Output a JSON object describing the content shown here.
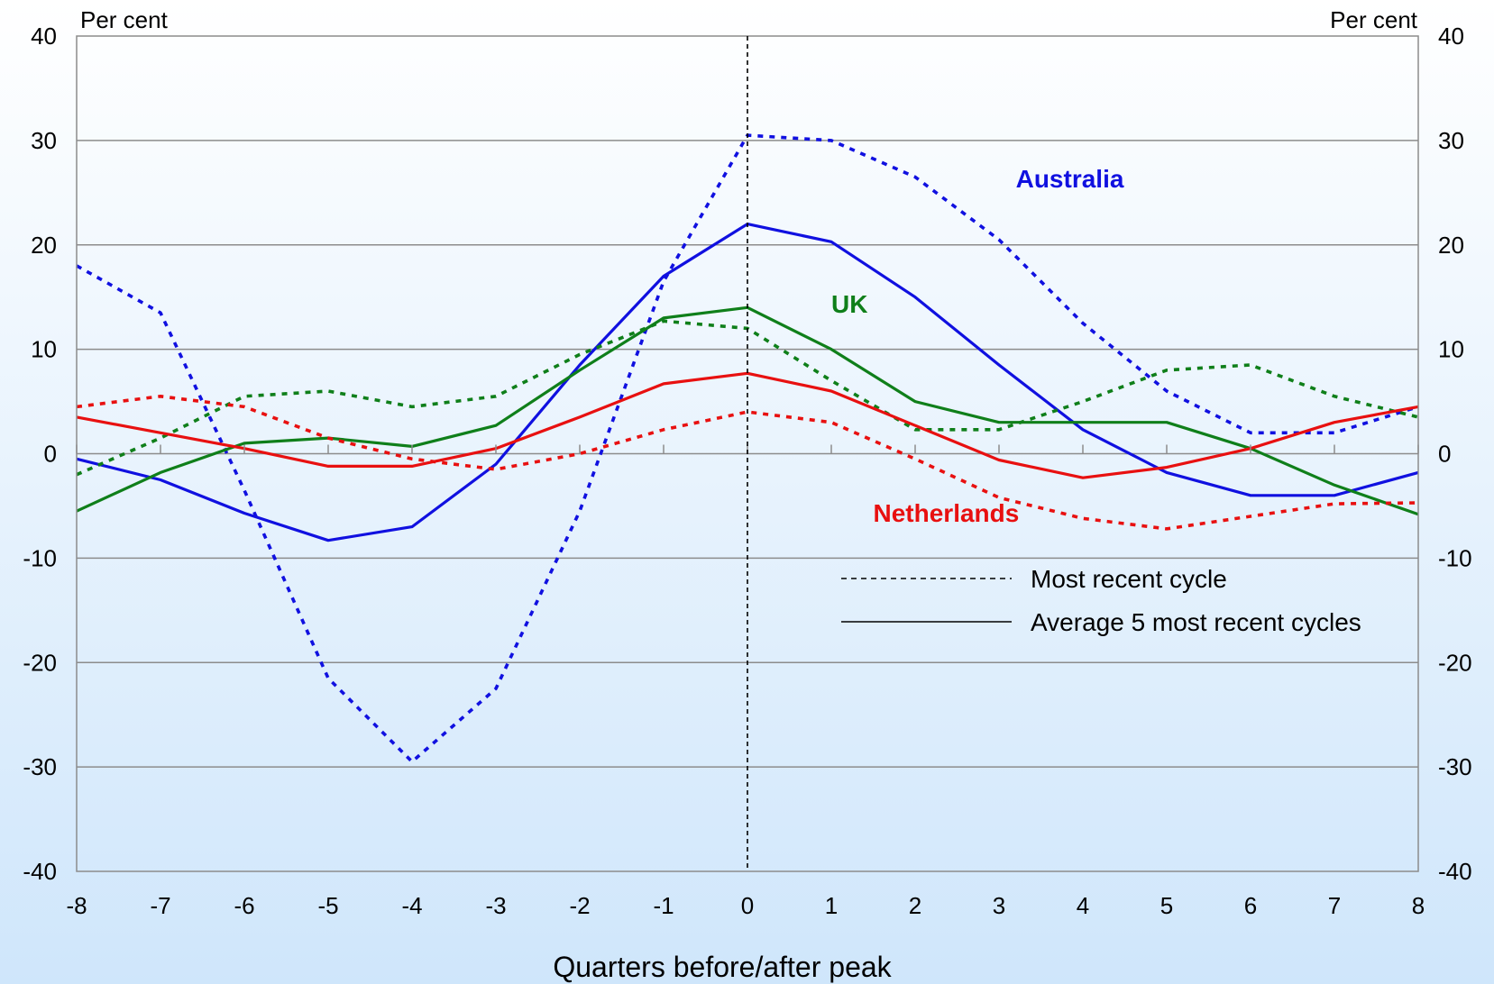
{
  "chart_data": {
    "type": "line",
    "title": "",
    "xlabel": "Quarters before/after peak",
    "ylabel_left": "Per cent",
    "ylabel_right": "Per cent",
    "x": [
      -8,
      -7,
      -6,
      -5,
      -4,
      -3,
      -2,
      -1,
      0,
      1,
      2,
      3,
      4,
      5,
      6,
      7,
      8
    ],
    "xlim": [
      -8,
      8
    ],
    "ylim": [
      -40,
      40
    ],
    "yticks": [
      -40,
      -30,
      -20,
      -10,
      0,
      10,
      20,
      30,
      40
    ],
    "grid": true,
    "peak_marker_x": 0,
    "series": [
      {
        "country": "Australia",
        "cycle": "Most recent cycle",
        "color": "#1010e0",
        "dash": true,
        "values": [
          18,
          13.5,
          -3.5,
          -21.5,
          -29.5,
          -22.5,
          -5.5,
          16.5,
          30.5,
          30,
          26.5,
          20.5,
          12.5,
          6,
          2,
          2,
          4.5
        ]
      },
      {
        "country": "Australia",
        "cycle": "Average 5 most recent cycles",
        "color": "#1010e0",
        "dash": false,
        "values": [
          -0.5,
          -2.5,
          -5.7,
          -8.3,
          -7,
          -1,
          8.5,
          17,
          22,
          20.3,
          15,
          8.5,
          2.3,
          -1.8,
          -4,
          -4,
          -1.8
        ]
      },
      {
        "country": "UK",
        "cycle": "Most recent cycle",
        "color": "#0f7f1a",
        "dash": true,
        "values": [
          -2,
          1.5,
          5.5,
          6,
          4.5,
          5.5,
          9.5,
          12.7,
          12,
          7,
          2.3,
          2.3,
          5,
          8,
          8.5,
          5.5,
          3.5
        ]
      },
      {
        "country": "UK",
        "cycle": "Average 5 most recent cycles",
        "color": "#0f7f1a",
        "dash": false,
        "values": [
          -5.5,
          -1.8,
          1,
          1.5,
          0.7,
          2.7,
          8,
          13,
          14,
          10,
          5,
          3,
          3,
          3,
          0.5,
          -3,
          -5.8
        ]
      },
      {
        "country": "Netherlands",
        "cycle": "Most recent cycle",
        "color": "#e81010",
        "dash": true,
        "values": [
          4.5,
          5.5,
          4.5,
          1.5,
          -0.5,
          -1.5,
          0,
          2.3,
          4,
          3,
          -0.5,
          -4.2,
          -6.2,
          -7.2,
          -6,
          -4.8,
          -4.7
        ]
      },
      {
        "country": "Netherlands",
        "cycle": "Average 5 most recent cycles",
        "color": "#e81010",
        "dash": false,
        "values": [
          3.5,
          2,
          0.5,
          -1.2,
          -1.2,
          0.5,
          3.5,
          6.7,
          7.7,
          6,
          2.7,
          -0.6,
          -2.3,
          -1.3,
          0.5,
          3,
          4.5
        ]
      }
    ],
    "series_labels": [
      {
        "text": "Australia",
        "color": "#1010e0",
        "x": 3.2,
        "y": 25.5
      },
      {
        "text": "UK",
        "color": "#0f7f1a",
        "x": 1,
        "y": 13.5
      },
      {
        "text": "Netherlands",
        "color": "#e81010",
        "x": 1.5,
        "y": -6.5
      }
    ],
    "legend": {
      "placement": "bottom-right",
      "entries": [
        {
          "label": "Most recent cycle",
          "dash": true
        },
        {
          "label": "Average 5 most recent cycles",
          "dash": false
        }
      ]
    }
  }
}
